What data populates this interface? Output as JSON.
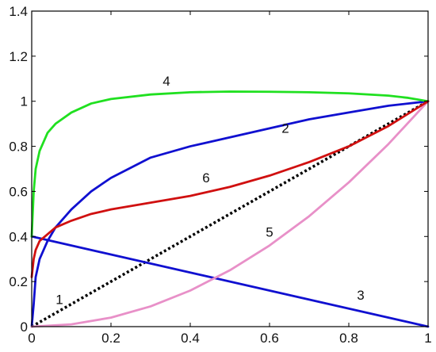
{
  "chart_data": {
    "type": "line",
    "title": "",
    "xlabel": "",
    "ylabel": "",
    "xlim": [
      0,
      1
    ],
    "ylim": [
      0,
      1.4
    ],
    "grid": false,
    "legend": "none",
    "x_ticks": [
      "0",
      "0.2",
      "0.4",
      "0.6",
      "0.8",
      "1"
    ],
    "y_ticks": [
      "0",
      "0.2",
      "0.4",
      "0.6",
      "0.8",
      "1",
      "1.2",
      "1.4"
    ],
    "series": [
      {
        "name": "1",
        "color": "#000000",
        "style": "dotted",
        "x": [
          0,
          1
        ],
        "y": [
          0,
          1
        ],
        "label_at": [
          0.07,
          0.1
        ]
      },
      {
        "name": "2",
        "color": "#1010d0",
        "style": "solid",
        "x": [
          0,
          0.005,
          0.01,
          0.02,
          0.04,
          0.06,
          0.1,
          0.15,
          0.2,
          0.3,
          0.4,
          0.5,
          0.6,
          0.7,
          0.8,
          0.9,
          1.0
        ],
        "y": [
          0,
          0.1,
          0.22,
          0.3,
          0.38,
          0.44,
          0.52,
          0.6,
          0.66,
          0.75,
          0.8,
          0.84,
          0.88,
          0.92,
          0.95,
          0.98,
          1.0
        ],
        "label_at": [
          0.64,
          0.86
        ]
      },
      {
        "name": "3",
        "color": "#1010d0",
        "style": "solid",
        "x": [
          0,
          1
        ],
        "y": [
          0.4,
          0
        ],
        "label_at": [
          0.83,
          0.12
        ]
      },
      {
        "name": "4",
        "color": "#20e020",
        "style": "solid",
        "x": [
          0,
          0.005,
          0.01,
          0.02,
          0.04,
          0.06,
          0.1,
          0.15,
          0.2,
          0.3,
          0.4,
          0.5,
          0.6,
          0.7,
          0.8,
          0.9,
          0.95,
          1.0
        ],
        "y": [
          0.4,
          0.6,
          0.7,
          0.78,
          0.86,
          0.9,
          0.95,
          0.99,
          1.01,
          1.03,
          1.04,
          1.043,
          1.042,
          1.04,
          1.035,
          1.025,
          1.015,
          1.0
        ],
        "label_at": [
          0.34,
          1.07
        ]
      },
      {
        "name": "5",
        "color": "#e890c8",
        "style": "solid",
        "x": [
          0,
          0.1,
          0.2,
          0.3,
          0.4,
          0.5,
          0.6,
          0.7,
          0.8,
          0.9,
          1.0
        ],
        "y": [
          0,
          0.01,
          0.04,
          0.09,
          0.16,
          0.25,
          0.36,
          0.49,
          0.64,
          0.81,
          1.0
        ],
        "label_at": [
          0.6,
          0.4
        ]
      },
      {
        "name": "6",
        "color": "#d01010",
        "style": "solid",
        "x": [
          0,
          0.005,
          0.01,
          0.02,
          0.04,
          0.06,
          0.1,
          0.15,
          0.2,
          0.3,
          0.4,
          0.5,
          0.6,
          0.7,
          0.8,
          0.9,
          1.0
        ],
        "y": [
          0.22,
          0.3,
          0.34,
          0.38,
          0.41,
          0.44,
          0.47,
          0.5,
          0.52,
          0.55,
          0.58,
          0.62,
          0.67,
          0.73,
          0.8,
          0.89,
          1.0
        ],
        "label_at": [
          0.44,
          0.64
        ]
      }
    ]
  }
}
